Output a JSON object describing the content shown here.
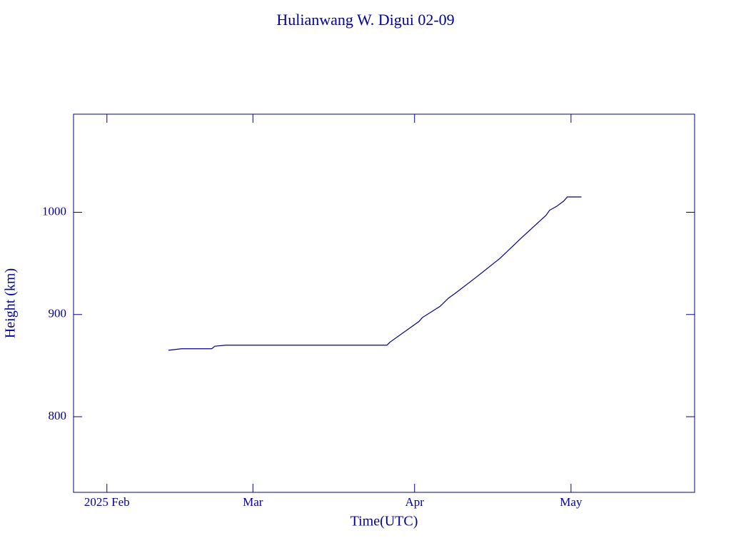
{
  "chart_data": {
    "type": "line",
    "title": "Hulianwang W. Digui 02-09",
    "x_label": "Time(UTC)",
    "y_label": "Height (km)",
    "x": [
      11.8,
      14.3,
      20.1,
      20.7,
      22.8,
      53.7,
      54.3,
      59.8,
      60.5,
      63.9,
      65.5,
      66.6,
      70.7,
      75.4,
      79.5,
      84.2,
      84.9,
      86.3,
      87.6,
      88.3,
      91.0
    ],
    "series": [
      {
        "name": "Height",
        "color": "#00008b",
        "values": [
          865,
          866.5,
          866.5,
          869,
          870,
          870,
          873,
          893,
          897,
          908,
          916,
          920,
          936,
          955,
          975,
          997,
          1002,
          1006,
          1011,
          1015,
          1015
        ]
      }
    ],
    "xlim": [
      -6.4,
      112.7
    ],
    "xticks": [
      {
        "value": 0,
        "label": "2025 Feb"
      },
      {
        "value": 28,
        "label": "Mar"
      },
      {
        "value": 59,
        "label": "Apr"
      },
      {
        "value": 89,
        "label": "May"
      }
    ],
    "ylim": [
      726,
      1096
    ],
    "yticks": [
      800,
      900,
      1000
    ]
  }
}
